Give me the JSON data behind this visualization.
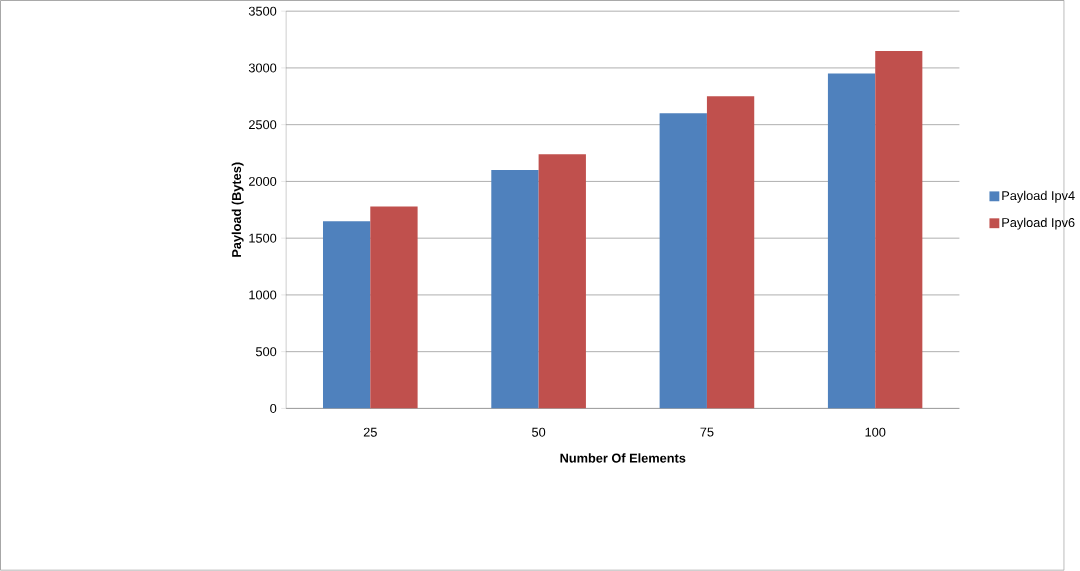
{
  "chart_data": {
    "type": "bar",
    "xlabel": "Number Of Elements",
    "ylabel": "Payload (Bytes)",
    "categories": [
      "25",
      "50",
      "75",
      "100"
    ],
    "series": [
      {
        "name": "Payload Ipv4",
        "color": "#4f81bd",
        "values": [
          1650,
          2100,
          2600,
          2950
        ]
      },
      {
        "name": "Payload Ipv6",
        "color": "#c0504d",
        "values": [
          1780,
          2240,
          2750,
          3150
        ]
      }
    ],
    "ylim": [
      0,
      3500
    ],
    "yticks": [
      0,
      500,
      1000,
      1500,
      2000,
      2500,
      3000,
      3500
    ],
    "grid": "y",
    "legend": "right"
  }
}
